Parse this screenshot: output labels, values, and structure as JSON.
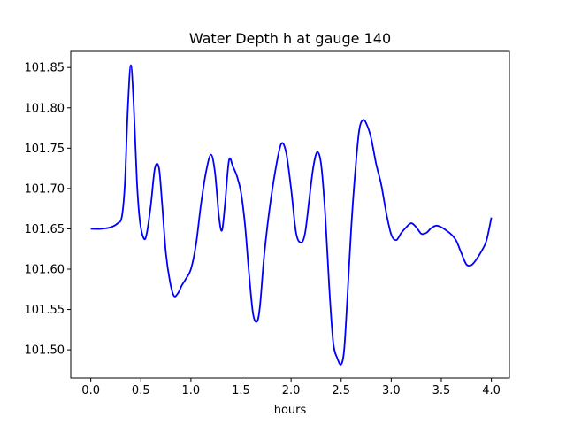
{
  "chart_data": {
    "type": "line",
    "title": "Water Depth h at gauge 140",
    "xlabel": "hours",
    "ylabel": "",
    "xlim": [
      -0.2,
      4.18
    ],
    "ylim": [
      101.465,
      101.87
    ],
    "xticks": [
      0.0,
      0.5,
      1.0,
      1.5,
      2.0,
      2.5,
      3.0,
      3.5,
      4.0
    ],
    "xtick_labels": [
      "0.0",
      "0.5",
      "1.0",
      "1.5",
      "2.0",
      "2.5",
      "3.0",
      "3.5",
      "4.0"
    ],
    "yticks": [
      101.5,
      101.55,
      101.6,
      101.65,
      101.7,
      101.75,
      101.8,
      101.85
    ],
    "ytick_labels": [
      "101.50",
      "101.55",
      "101.60",
      "101.65",
      "101.70",
      "101.75",
      "101.80",
      "101.85"
    ],
    "grid": false,
    "series": [
      {
        "color": "#0000ff",
        "x": [
          0.0,
          0.1,
          0.2,
          0.27,
          0.31,
          0.34,
          0.37,
          0.4,
          0.43,
          0.46,
          0.49,
          0.53,
          0.56,
          0.6,
          0.64,
          0.68,
          0.71,
          0.75,
          0.79,
          0.83,
          0.87,
          0.91,
          0.95,
          1.0,
          1.05,
          1.1,
          1.15,
          1.2,
          1.24,
          1.28,
          1.31,
          1.34,
          1.38,
          1.42,
          1.46,
          1.5,
          1.54,
          1.58,
          1.62,
          1.66,
          1.69,
          1.73,
          1.78,
          1.84,
          1.9,
          1.95,
          2.0,
          2.05,
          2.1,
          2.14,
          2.18,
          2.22,
          2.26,
          2.3,
          2.34,
          2.38,
          2.42,
          2.46,
          2.5,
          2.53,
          2.56,
          2.6,
          2.64,
          2.68,
          2.72,
          2.76,
          2.8,
          2.85,
          2.9,
          2.95,
          3.0,
          3.05,
          3.1,
          3.15,
          3.2,
          3.25,
          3.3,
          3.35,
          3.4,
          3.45,
          3.5,
          3.55,
          3.6,
          3.65,
          3.7,
          3.75,
          3.8,
          3.85,
          3.9,
          3.95,
          4.0
        ],
        "y": [
          101.65,
          101.65,
          101.652,
          101.657,
          101.665,
          101.705,
          101.8,
          101.853,
          101.8,
          101.71,
          101.66,
          101.638,
          101.645,
          101.68,
          101.725,
          101.726,
          101.685,
          101.62,
          101.585,
          101.567,
          101.57,
          101.58,
          101.588,
          101.6,
          101.63,
          101.68,
          101.72,
          101.742,
          101.72,
          101.665,
          101.648,
          101.68,
          101.735,
          101.727,
          101.715,
          101.695,
          101.655,
          101.595,
          101.545,
          101.535,
          101.555,
          101.615,
          101.67,
          101.72,
          101.755,
          101.745,
          101.7,
          101.645,
          101.633,
          101.645,
          101.685,
          101.725,
          101.745,
          101.73,
          101.67,
          101.58,
          101.51,
          101.49,
          101.482,
          101.5,
          101.56,
          101.65,
          101.72,
          101.772,
          101.785,
          101.778,
          101.762,
          101.73,
          101.705,
          101.67,
          101.643,
          101.636,
          101.645,
          101.652,
          101.657,
          101.652,
          101.644,
          101.645,
          101.651,
          101.654,
          101.652,
          101.648,
          101.643,
          101.635,
          101.62,
          101.606,
          101.605,
          101.612,
          101.622,
          101.635,
          101.664
        ]
      }
    ]
  }
}
